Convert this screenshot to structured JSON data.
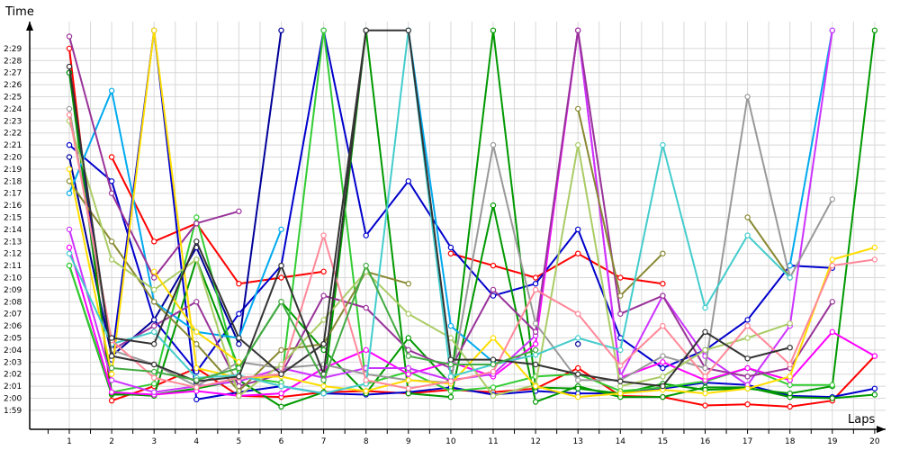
{
  "chart_data": {
    "type": "line",
    "xlabel": "Laps",
    "ylabel": "Time",
    "x": [
      1,
      2,
      3,
      4,
      5,
      6,
      7,
      8,
      9,
      10,
      11,
      12,
      13,
      14,
      15,
      16,
      17,
      18,
      19,
      20
    ],
    "ytick_labels": [
      "1:59",
      "2:00",
      "2:01",
      "2:02",
      "2:03",
      "2:04",
      "2:05",
      "2:06",
      "2:07",
      "2:08",
      "2:09",
      "2:10",
      "2:11",
      "2:12",
      "2:13",
      "2:14",
      "2:15",
      "2:16",
      "2:17",
      "2:18",
      "2:19",
      "2:20",
      "2:21",
      "2:22",
      "2:23",
      "2:24",
      "2:25",
      "2:26",
      "2:27",
      "2:28",
      "2:29"
    ],
    "ytick_values": [
      119,
      120,
      121,
      122,
      123,
      124,
      125,
      126,
      127,
      128,
      129,
      130,
      131,
      132,
      133,
      134,
      135,
      136,
      137,
      138,
      139,
      140,
      141,
      142,
      143,
      144,
      145,
      146,
      147,
      148,
      149
    ],
    "ylim": [
      118.5,
      150.5
    ],
    "xlim": [
      0.3,
      20.2
    ],
    "grid": true,
    "legend": "none",
    "series": [
      {
        "color": "#ff0000",
        "values": [
          149,
          119.8,
          121,
          122.5,
          120.2,
          120.1,
          120.5,
          120.6,
          120.4,
          120.7,
          120.5,
          120.8,
          122.5,
          120.2,
          120.1,
          119.4,
          119.5,
          119.3,
          119.8,
          123.5
        ]
      },
      {
        "color": "#ff0000",
        "values": [
          null,
          140,
          133,
          134.5,
          129.5,
          130,
          130.5,
          null,
          null,
          132,
          131,
          130,
          132,
          130,
          129.5,
          null,
          null,
          null,
          null,
          null
        ]
      },
      {
        "color": "#0000cc",
        "values": [
          147,
          123.2,
          150.5,
          119.9,
          120.5,
          121,
          120.4,
          120.3,
          120.5,
          120.9,
          120.3,
          120.6,
          120.4,
          120.4,
          120.8,
          121.3,
          121.1,
          120.2,
          120.1,
          120.8
        ]
      },
      {
        "color": "#0000cc",
        "values": [
          141,
          138,
          126.5,
          122.2,
          127,
          131,
          150.5,
          133.5,
          138,
          132.5,
          128.5,
          129.5,
          134,
          125,
          122.5,
          124,
          126.5,
          131,
          130.8,
          null
        ]
      },
      {
        "color": "#000099",
        "values": [
          140,
          123.5,
          126.5,
          132.5,
          124.5,
          150.5,
          null,
          150.5,
          null,
          null,
          null,
          null,
          124.5,
          null,
          null,
          null,
          null,
          null,
          null,
          null
        ]
      },
      {
        "color": "#009900",
        "values": [
          131,
          120.3,
          120.3,
          120.8,
          121.5,
          119.3,
          120.5,
          150.5,
          120.4,
          120.1,
          136,
          119.7,
          121,
          120.1,
          120.1,
          120.9,
          120.9,
          120.1,
          120,
          120.3
        ]
      },
      {
        "color": "#009900",
        "values": [
          147,
          120.4,
          120.2,
          131.5,
          122.5,
          128,
          124,
          120.4,
          125,
          121.2,
          150.5,
          120.9,
          120.8,
          120.4,
          121.2,
          120.7,
          120.8,
          120.4,
          121,
          150.5
        ]
      },
      {
        "color": "#33cc33",
        "values": [
          131,
          120.5,
          121.2,
          135,
          121.8,
          121.3,
          150.5,
          121.2,
          122.2,
          120.6,
          120.9,
          121.8,
          122,
          120.6,
          120.9,
          121.4,
          122.5,
          121.1,
          121.1,
          null
        ]
      },
      {
        "color": "#00aaee",
        "values": [
          137,
          145.5,
          128,
          125.5,
          125,
          134,
          null,
          null,
          null,
          null,
          null,
          null,
          null,
          null,
          null,
          null,
          null,
          null,
          null,
          null
        ]
      },
      {
        "color": "#00aaee",
        "values": [
          null,
          null,
          null,
          null,
          null,
          null,
          null,
          null,
          150.5,
          126,
          123,
          null,
          null,
          null,
          null,
          null,
          null,
          131,
          150.5,
          null
        ]
      },
      {
        "color": "#ff00ff",
        "values": [
          132.5,
          120.5,
          120.3,
          120.6,
          120.2,
          120.4,
          122.5,
          124,
          122,
          123,
          121.8,
          124.5,
          150.5,
          121.7,
          123,
          121.5,
          122.5,
          121.5,
          125.5,
          123.5
        ]
      },
      {
        "color": "#cc33ff",
        "values": [
          134,
          121.5,
          120.5,
          121,
          121.4,
          122.5,
          121.7,
          122.5,
          122.5,
          121.5,
          122,
          125.2,
          150.5,
          121.8,
          128.5,
          123.5,
          121.1,
          126,
          150.5,
          null
        ]
      },
      {
        "color": "#993399",
        "values": [
          150,
          137,
          130,
          134.5,
          135.5,
          null,
          null,
          null,
          null,
          null,
          null,
          null,
          null,
          null,
          null,
          null,
          null,
          null,
          null,
          null
        ]
      },
      {
        "color": "#993399",
        "values": [
          null,
          124,
          126,
          128,
          121,
          122,
          128.5,
          127.5,
          124,
          122.5,
          129,
          125.5,
          150.5,
          127,
          128.5,
          122.5,
          121.8,
          122.5,
          128,
          null
        ]
      },
      {
        "color": "#888833",
        "values": [
          138,
          133,
          128,
          124.5,
          120.6,
          124,
          124.5,
          130.5,
          129.5,
          null,
          null,
          null,
          144,
          128.5,
          132,
          null,
          135,
          130,
          null,
          null
        ]
      },
      {
        "color": "#999999",
        "values": [
          144,
          124,
          122.8,
          121,
          123,
          122.5,
          122.8,
          122,
          121.5,
          121.3,
          141,
          126.2,
          121.5,
          121.5,
          123.5,
          122.5,
          145,
          130,
          136.5,
          null
        ]
      },
      {
        "color": "#aacc66",
        "values": [
          143,
          131.5,
          129,
          131.5,
          120.2,
          122.8,
          126.5,
          130.5,
          127,
          125,
          120.2,
          121.1,
          141,
          121,
          121.8,
          124,
          125,
          126.2,
          null,
          null
        ]
      },
      {
        "color": "#ffdd00",
        "values": [
          139,
          122,
          150.5,
          122.5,
          121.7,
          121.8,
          121,
          120.6,
          121.5,
          121.2,
          125,
          121,
          120.1,
          120.4,
          120.7,
          120.4,
          120.8,
          121.8,
          131.5,
          132.5
        ]
      },
      {
        "color": "#ffdd00",
        "values": [
          null,
          null,
          130.5,
          125.5,
          123,
          null,
          null,
          null,
          null,
          null,
          null,
          null,
          null,
          null,
          null,
          null,
          null,
          null,
          null,
          null
        ]
      },
      {
        "color": "#44cccc",
        "values": [
          132,
          124.5,
          125.5,
          121.7,
          121.9,
          121,
          120.4,
          121.2,
          150.5,
          121.8,
          122.8,
          123.6,
          125,
          124,
          141,
          127.5,
          133.5,
          130,
          null,
          null
        ]
      },
      {
        "color": "#ff8899",
        "values": [
          143.5,
          124.8,
          121.7,
          120.9,
          121.7,
          122,
          133.5,
          121.5,
          120.8,
          121.4,
          122.2,
          129,
          127,
          122.7,
          126,
          121.8,
          126,
          122.8,
          131,
          131.5
        ]
      },
      {
        "color": "#333333",
        "values": [
          147.5,
          123.5,
          122.8,
          121.4,
          121.8,
          131,
          122,
          150.5,
          150.5,
          123.2,
          123.2,
          122.8,
          122,
          121.4,
          121,
          125.5,
          123.3,
          124.2,
          null,
          null
        ]
      },
      {
        "color": "#333333",
        "values": [
          null,
          125,
          124.5,
          133,
          125,
          122,
          124.5,
          150.5,
          null,
          null,
          null,
          null,
          null,
          null,
          null,
          null,
          null,
          null,
          null,
          null
        ]
      },
      {
        "color": "#44aa44",
        "values": [
          null,
          122.5,
          122.2,
          121.5,
          122.5,
          128,
          121.5,
          131,
          123.5,
          122.8,
          122.8,
          124,
          null,
          null,
          null,
          null,
          null,
          null,
          null,
          null
        ]
      }
    ]
  }
}
